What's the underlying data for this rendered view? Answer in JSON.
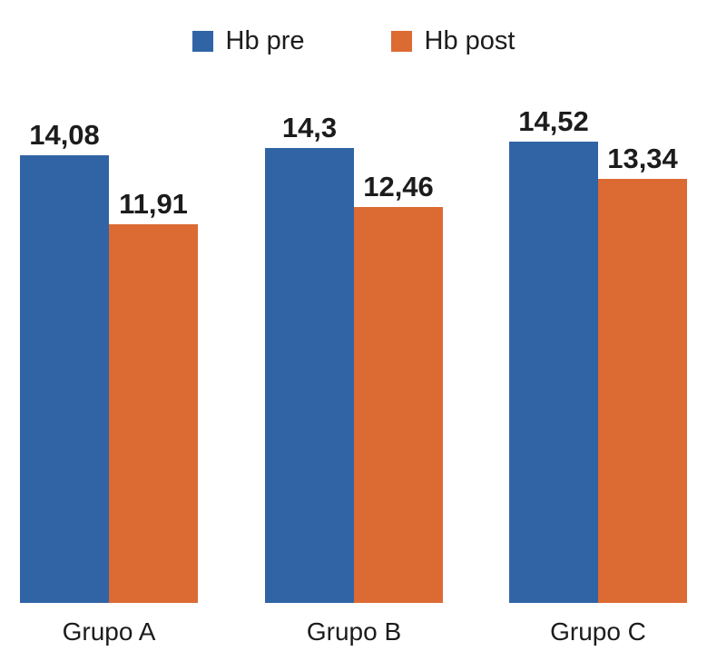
{
  "chart_data": {
    "type": "bar",
    "categories": [
      "Grupo A",
      "Grupo B",
      "Grupo C"
    ],
    "series": [
      {
        "name": "Hb pre",
        "color": "#3164A5",
        "values": [
          14.08,
          14.3,
          14.52
        ],
        "value_labels": [
          "14,08",
          "14,3",
          "14,52"
        ]
      },
      {
        "name": "Hb post",
        "color": "#DC6A33",
        "values": [
          11.91,
          12.46,
          13.34
        ],
        "value_labels": [
          "11,91",
          "12,46",
          "13,34"
        ]
      }
    ],
    "title": "",
    "xlabel": "",
    "ylabel": "",
    "ylim": [
      0,
      15
    ],
    "grid": false,
    "axes_visible": false,
    "value_labels_shown": true,
    "decimal_separator": ",",
    "legend_position": "top"
  },
  "legend": {
    "items": [
      {
        "label": "Hb pre",
        "color": "#3164A5"
      },
      {
        "label": "Hb post",
        "color": "#DC6A33"
      }
    ]
  },
  "colors": {
    "bar_pre": "#3164A5",
    "bar_post": "#DC6A33",
    "text": "#1c1c1c",
    "background": "#ffffff"
  }
}
